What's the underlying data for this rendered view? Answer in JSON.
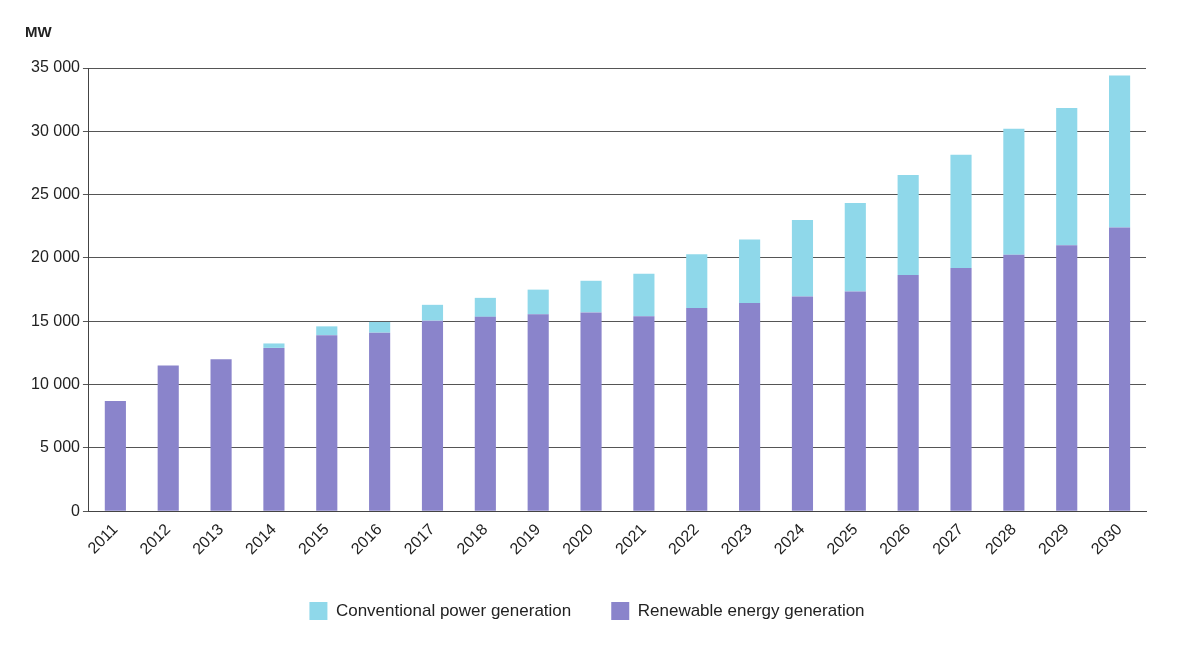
{
  "chart_data": {
    "type": "bar",
    "ylabel": "MW",
    "stacked": true,
    "grid": "y",
    "legend": "bottom",
    "categories": [
      "2011",
      "2012",
      "2013",
      "2014",
      "2015",
      "2016",
      "2017",
      "2018",
      "2019",
      "2020",
      "2021",
      "2022",
      "2023",
      "2024",
      "2025",
      "2026",
      "2027",
      "2028",
      "2029",
      "2030"
    ],
    "series": [
      {
        "name": "Renewable energy generation",
        "color": "#8a84cb",
        "values": [
          8700,
          11500,
          12000,
          12900,
          13900,
          14100,
          15050,
          15350,
          15550,
          15700,
          15400,
          16050,
          16450,
          16950,
          17350,
          18650,
          19200,
          20250,
          21000,
          22400
        ]
      },
      {
        "name": "Conventional power generation",
        "color": "#8fd8ea",
        "values": [
          0,
          0,
          0,
          350,
          700,
          850,
          1250,
          1500,
          1950,
          2500,
          3350,
          4250,
          5000,
          6050,
          7000,
          7900,
          8950,
          9950,
          10850,
          12000
        ]
      }
    ],
    "ylim": [
      0,
      35000
    ],
    "yticks": [
      {
        "value": 0,
        "label": "0"
      },
      {
        "value": 5000,
        "label": "5 000"
      },
      {
        "value": 10000,
        "label": "10 000"
      },
      {
        "value": 15000,
        "label": "15 000"
      },
      {
        "value": 20000,
        "label": "20 000"
      },
      {
        "value": 25000,
        "label": "25 000"
      },
      {
        "value": 30000,
        "label": "30 000"
      },
      {
        "value": 35000,
        "label": "35 000"
      }
    ]
  }
}
